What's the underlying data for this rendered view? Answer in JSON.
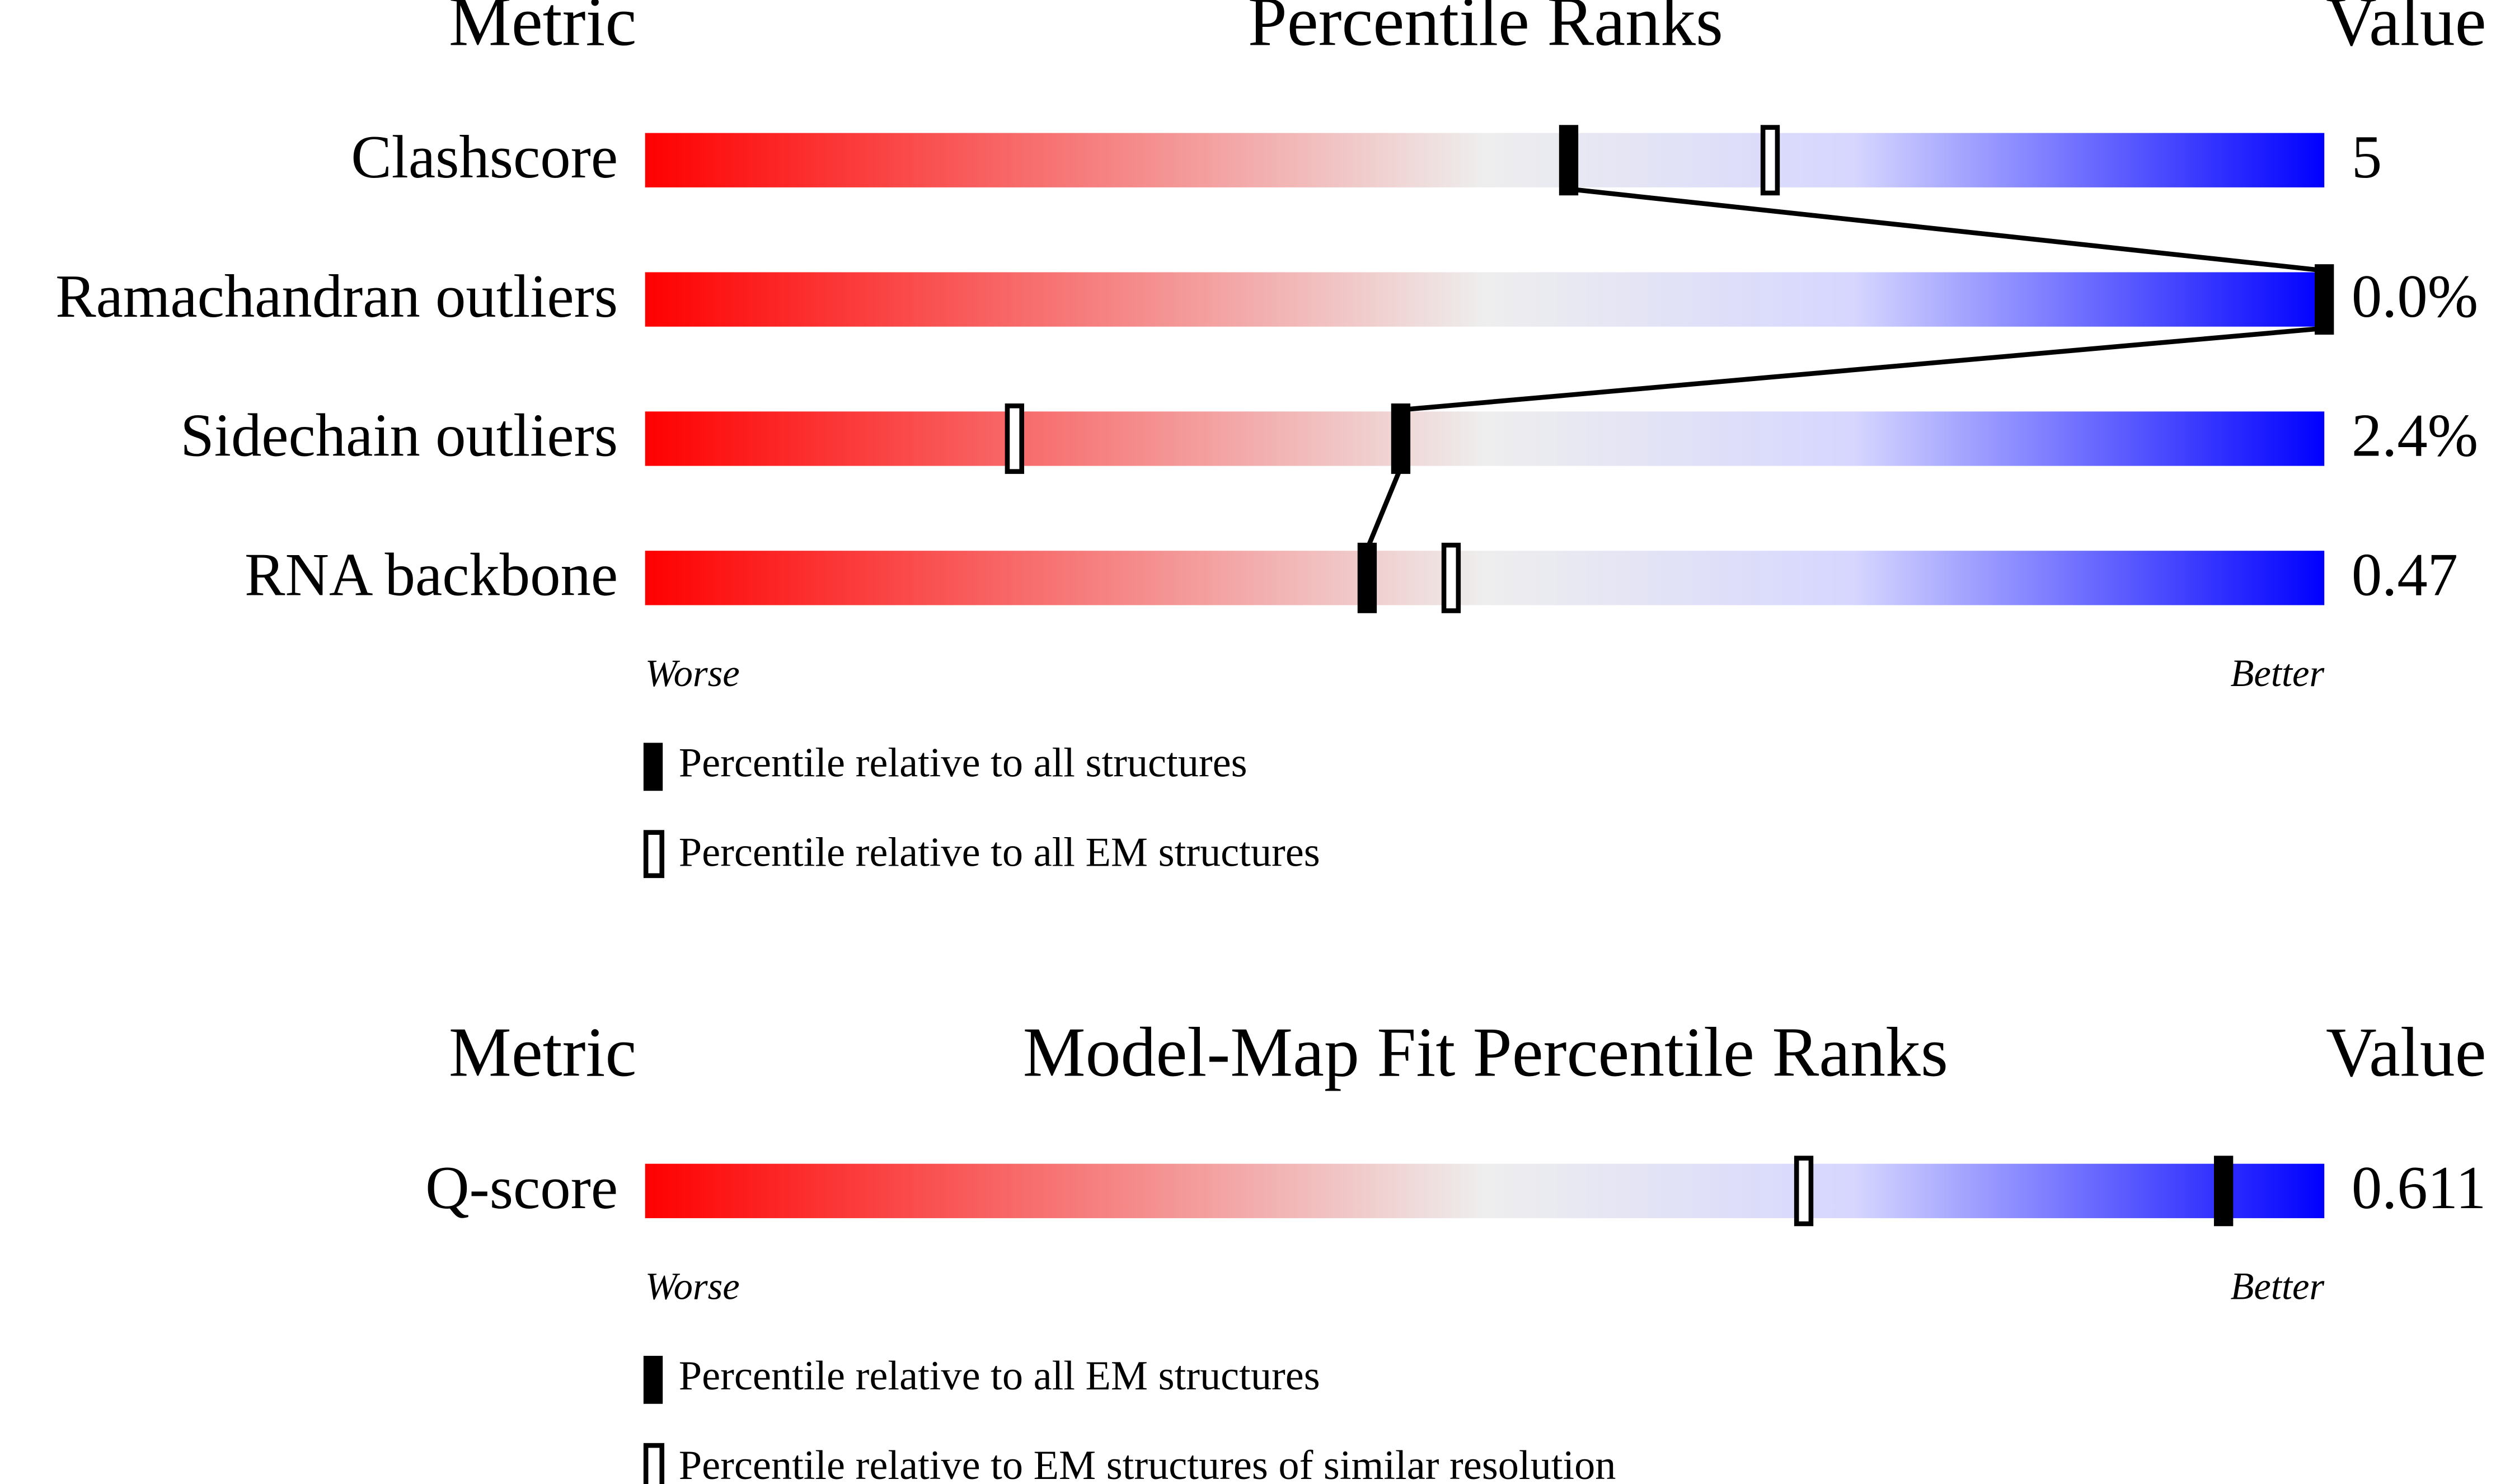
{
  "chart_data": [
    {
      "type": "percentile-slider",
      "metric_header": "Metric",
      "title": "Percentile Ranks",
      "value_header": "Value",
      "categories": [
        "Clashscore",
        "Ramachandran outliers",
        "Sidechain outliers",
        "RNA backbone"
      ],
      "metric_values": [
        "5",
        "0.0%",
        "2.4%",
        "0.47"
      ],
      "xlim": [
        0,
        100
      ],
      "series": [
        {
          "name": "Percentile relative to all structures",
          "marker": "filled",
          "color": "#000000",
          "values": [
            55,
            100,
            45,
            43
          ]
        },
        {
          "name": "Percentile relative to all EM structures",
          "marker": "hollow",
          "color": "#000000",
          "values": [
            67,
            null,
            22,
            48
          ]
        }
      ],
      "worse_label": "Worse",
      "better_label": "Better",
      "gradient": [
        "#ff0000",
        "#eeeeee",
        "#d6d6ff",
        "#0000ff"
      ]
    },
    {
      "type": "percentile-slider",
      "metric_header": "Metric",
      "title": "Model-Map Fit Percentile Ranks",
      "value_header": "Value",
      "categories": [
        "Q-score"
      ],
      "metric_values": [
        "0.611"
      ],
      "xlim": [
        0,
        100
      ],
      "series": [
        {
          "name": "Percentile relative to all EM structures",
          "marker": "filled",
          "color": "#000000",
          "values": [
            94
          ]
        },
        {
          "name": "Percentile relative to EM structures of similar resolution",
          "marker": "hollow",
          "color": "#000000",
          "values": [
            69
          ]
        }
      ],
      "worse_label": "Worse",
      "better_label": "Better",
      "gradient": [
        "#ff0000",
        "#eeeeee",
        "#d6d6ff",
        "#0000ff"
      ]
    }
  ]
}
